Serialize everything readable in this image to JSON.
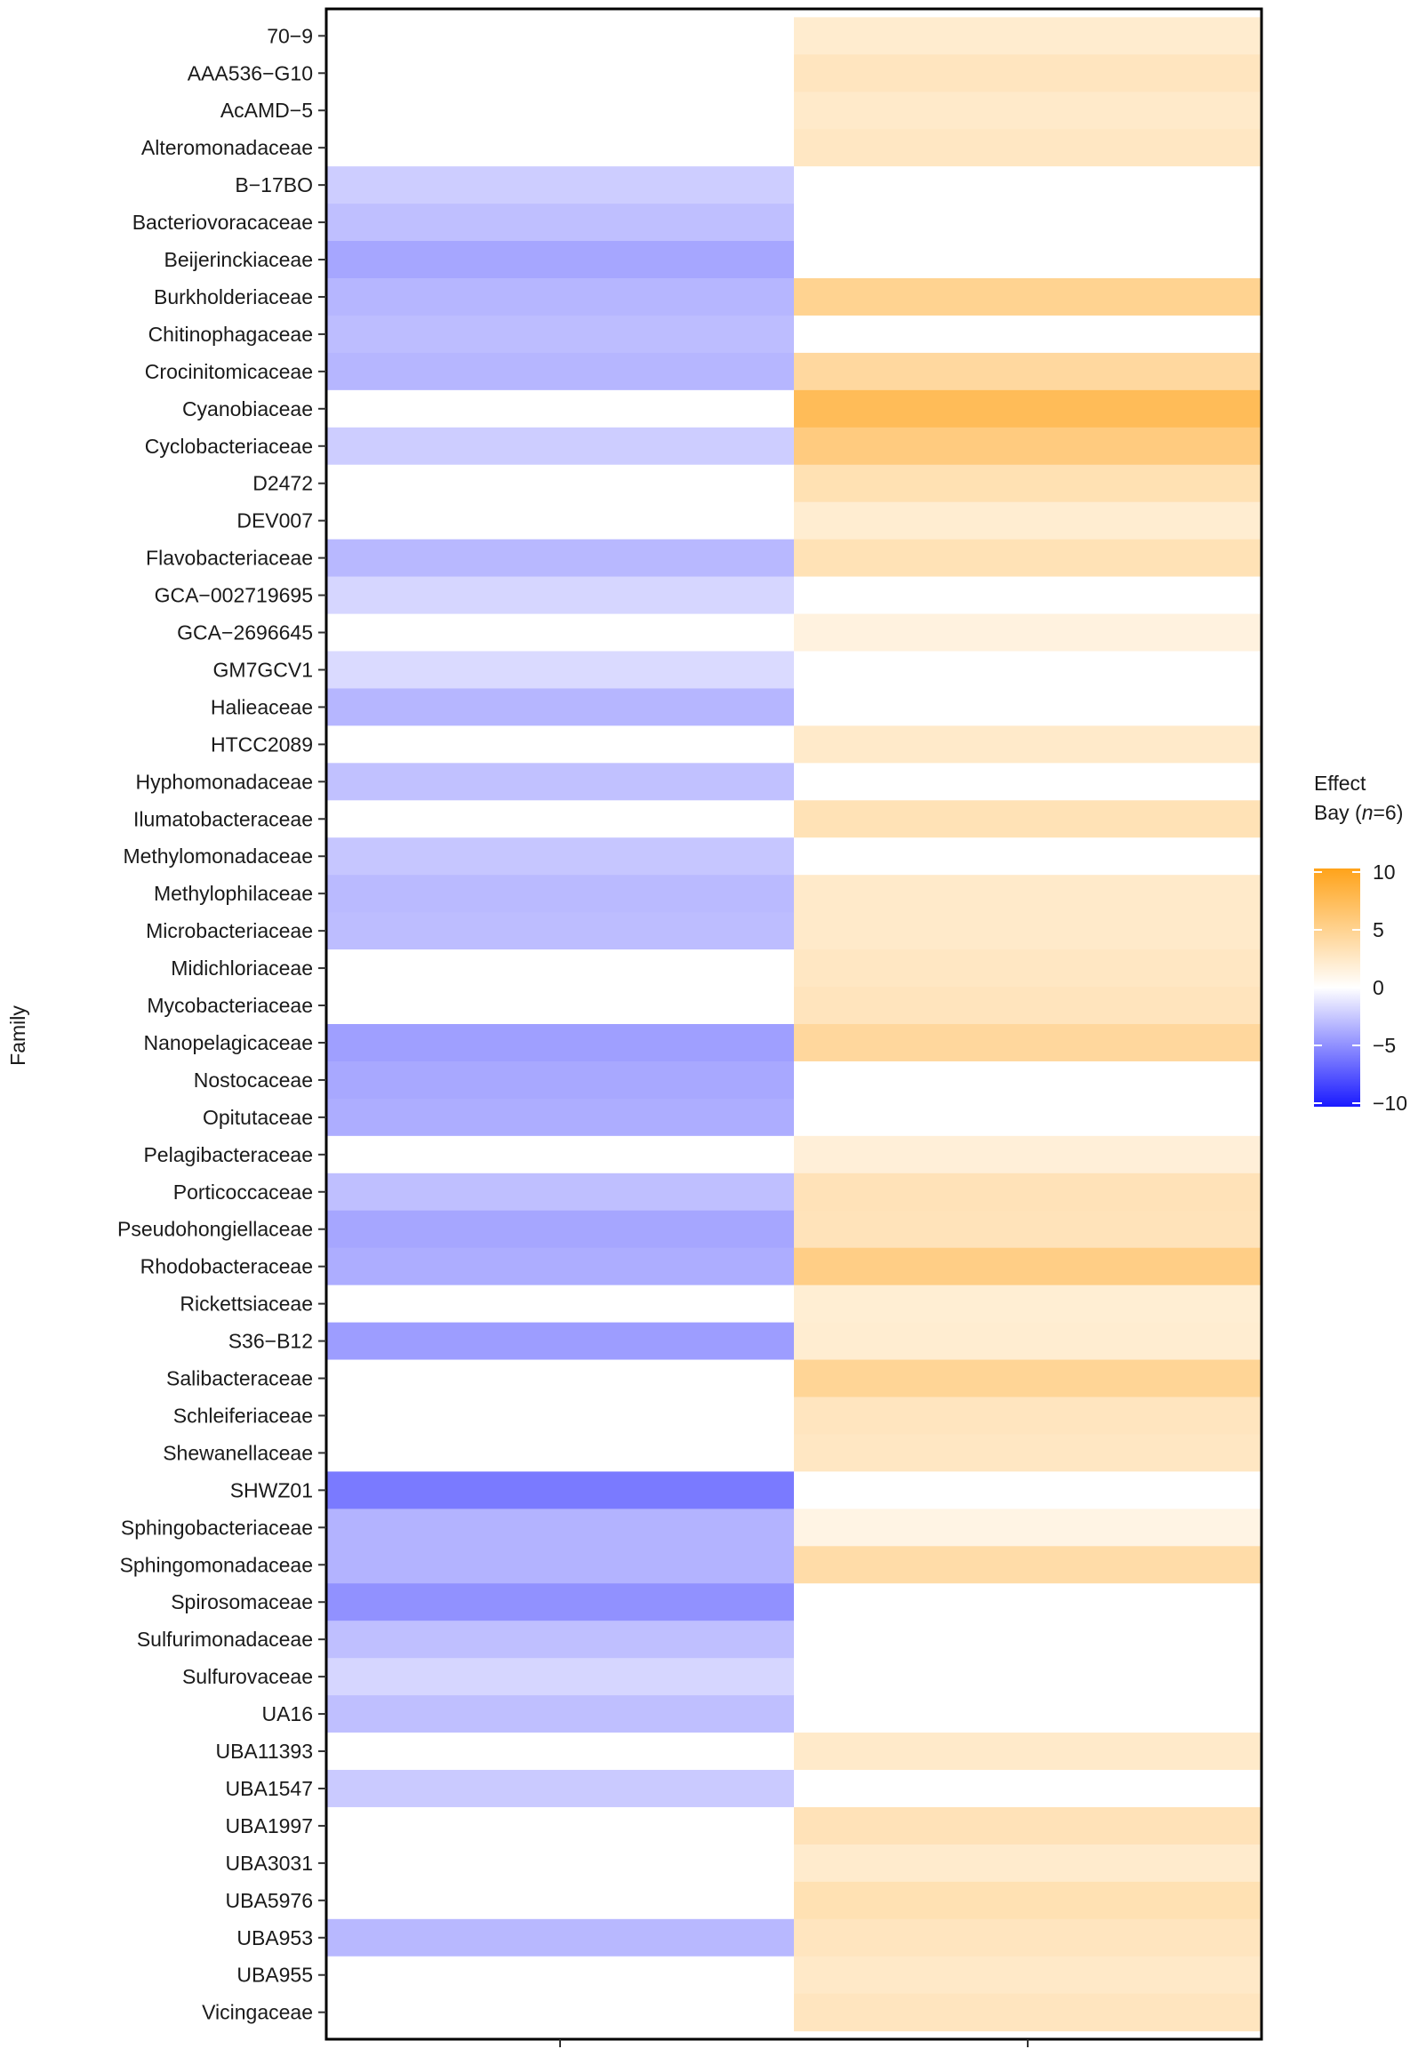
{
  "chart_data": {
    "type": "heatmap",
    "ylabel": "Family",
    "columns": [
      "",
      ""
    ],
    "families": [
      "70-9",
      "AAA536-G10",
      "AcAMD-5",
      "Alteromonadaceae",
      "B-17BO",
      "Bacteriovoracaceae",
      "Beijerinckiaceae",
      "Burkholderiaceae",
      "Chitinophagaceae",
      "Crocinitomicaceae",
      "Cyanobiaceae",
      "Cyclobacteriaceae",
      "D2472",
      "DEV007",
      "Flavobacteriaceae",
      "GCA-002719695",
      "GCA-2696645",
      "GM7GCV1",
      "Halieaceae",
      "HTCC2089",
      "Hyphomonadaceae",
      "Ilumatobacteraceae",
      "Methylomonadaceae",
      "Methylophilaceae",
      "Microbacteriaceae",
      "Midichloriaceae",
      "Mycobacteriaceae",
      "Nanopelagicaceae",
      "Nostocaceae",
      "Opitutaceae",
      "Pelagibacteraceae",
      "Porticoccaceae",
      "Pseudohongiellaceae",
      "Rhodobacteraceae",
      "Rickettsiaceae",
      "S36-B12",
      "Salibacteraceae",
      "Schleiferiaceae",
      "Shewanellaceae",
      "SHWZ01",
      "Sphingobacteriaceae",
      "Sphingomonadaceae",
      "Spirosomaceae",
      "Sulfurimonadaceae",
      "Sulfurovaceae",
      "UA16",
      "UBA11393",
      "UBA1547",
      "UBA1997",
      "UBA3031",
      "UBA5976",
      "UBA953",
      "UBA955",
      "Vicingaceae"
    ],
    "values_left": [
      0,
      0,
      0,
      0,
      -2.2,
      -2.8,
      -3.9,
      -3.2,
      -2.9,
      -3.2,
      0,
      -2.2,
      0,
      0,
      -3.1,
      -1.8,
      0,
      -1.6,
      -3.2,
      0,
      -2.7,
      0,
      -2.5,
      -3.0,
      -2.9,
      0,
      0,
      -4.2,
      -3.8,
      -3.6,
      0,
      -2.8,
      -3.9,
      -3.6,
      0,
      -4.3,
      0,
      0,
      0,
      -5.8,
      -3.3,
      -3.3,
      -4.8,
      -2.8,
      -1.8,
      -2.8,
      0,
      -2.3,
      0,
      0,
      0,
      -3.1,
      0,
      0
    ],
    "values_right": [
      2.1,
      2.8,
      2.3,
      2.6,
      0,
      0,
      0,
      4.8,
      0,
      4.2,
      7.3,
      5.6,
      3.3,
      2.0,
      3.2,
      0,
      1.4,
      0,
      0,
      2.3,
      0,
      3.2,
      0,
      2.3,
      2.3,
      2.6,
      2.9,
      4.3,
      0,
      0,
      1.7,
      3.1,
      3.0,
      5.3,
      1.9,
      2.0,
      4.6,
      2.8,
      2.6,
      0,
      1.2,
      3.8,
      0,
      0,
      0,
      0,
      2.3,
      0,
      3.1,
      2.2,
      3.3,
      2.8,
      2.4,
      2.8
    ],
    "legend": {
      "title_line1": "Effect",
      "title_line2_prefix": "Bay (",
      "title_line2_var": "n",
      "title_line2_suffix": "=6)",
      "ticks": [
        10,
        5,
        0,
        -5,
        -10
      ],
      "tick_labels": [
        "10",
        "5",
        "0",
        "−5",
        "−10"
      ],
      "range": [
        -10,
        10
      ],
      "colors": {
        "low": "#1a1aff",
        "mid": "#ffffff",
        "high": "#ffa31a"
      }
    }
  }
}
